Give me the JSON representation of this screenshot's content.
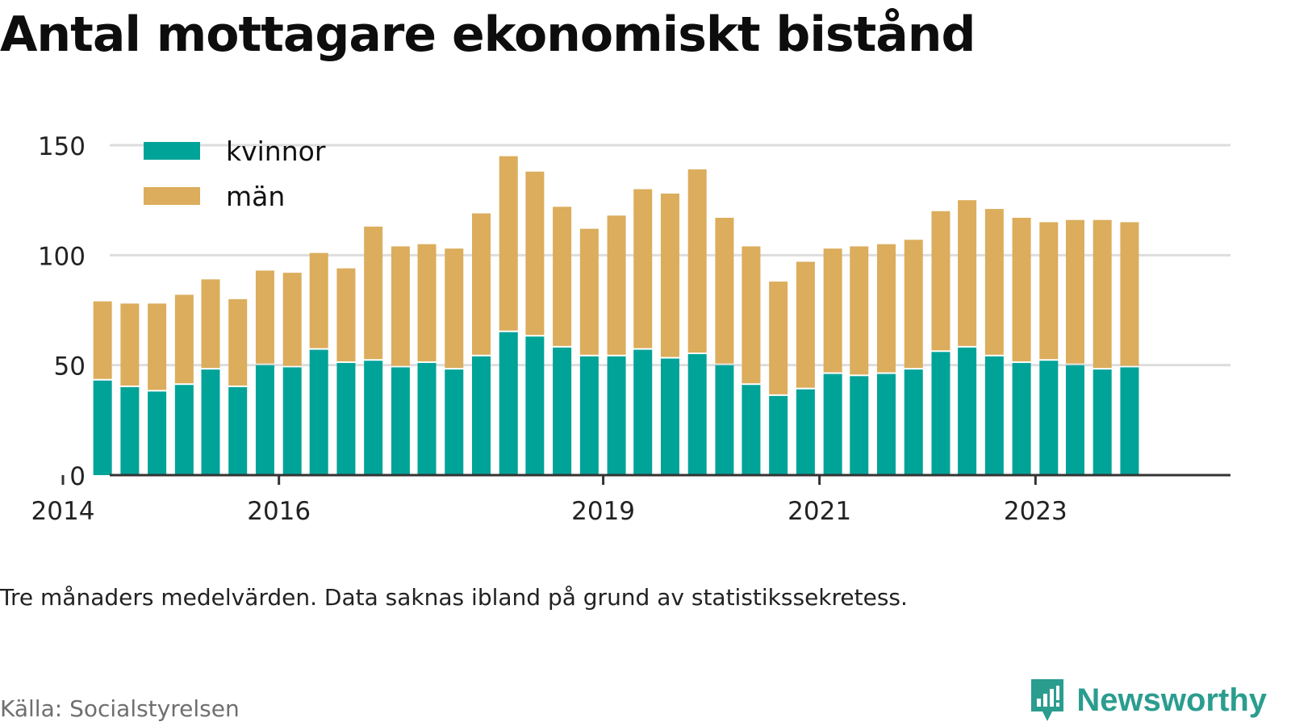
{
  "title": "Antal mottagare ekonomiskt bistånd",
  "note": "Tre månaders medelvärden. Data saknas ibland på grund av statistikssekretess.",
  "source": "Källa: Socialstyrelsen",
  "brand": {
    "name": "Newsworthy",
    "icon": "newsworthy-logo-icon"
  },
  "colors": {
    "kvinnor": "#00A398",
    "man": "#DBAD5C",
    "grid": "#dddddd",
    "axis": "#333333",
    "text": "#222222",
    "brand": "#2a9d8f"
  },
  "chart_data": {
    "type": "bar",
    "stacked": true,
    "legend_position": "top-left",
    "grid": true,
    "ylim": [
      0,
      150
    ],
    "yticks": [
      0,
      50,
      100,
      150
    ],
    "xlim": [
      "2014-01",
      "2024-12"
    ],
    "xticks": [
      {
        "label": "2014",
        "date": "2014-01-01"
      },
      {
        "label": "2016",
        "date": "2016-01-01"
      },
      {
        "label": "2019",
        "date": "2019-01-01"
      },
      {
        "label": "2021",
        "date": "2021-01-01"
      },
      {
        "label": "2023",
        "date": "2023-01-01"
      }
    ],
    "x": [
      "2014-05",
      "2014-08",
      "2014-11",
      "2015-02",
      "2015-05",
      "2015-08",
      "2015-11",
      "2016-02",
      "2016-05",
      "2016-08",
      "2016-11",
      "2017-02",
      "2017-05",
      "2017-08",
      "2017-11",
      "2018-02",
      "2018-05",
      "2018-08",
      "2018-11",
      "2019-02",
      "2019-05",
      "2019-08",
      "2019-11",
      "2020-02",
      "2020-05",
      "2020-08",
      "2020-11",
      "2021-02",
      "2021-05",
      "2021-08",
      "2021-11",
      "2022-02",
      "2022-05",
      "2022-08",
      "2022-11",
      "2023-02",
      "2023-05",
      "2023-08",
      "2023-11"
    ],
    "series": [
      {
        "name": "kvinnor",
        "values": [
          43,
          40,
          38,
          41,
          48,
          40,
          50,
          49,
          57,
          51,
          52,
          49,
          51,
          48,
          54,
          65,
          63,
          58,
          54,
          54,
          57,
          53,
          55,
          50,
          41,
          36,
          39,
          46,
          45,
          46,
          48,
          56,
          58,
          54,
          51,
          52,
          50,
          48,
          49
        ]
      },
      {
        "name": "män",
        "values": [
          36,
          38,
          40,
          41,
          41,
          40,
          43,
          43,
          44,
          43,
          61,
          55,
          54,
          55,
          65,
          80,
          75,
          64,
          58,
          64,
          73,
          75,
          84,
          67,
          63,
          52,
          58,
          57,
          59,
          59,
          59,
          64,
          67,
          67,
          66,
          63,
          66,
          68,
          66
        ]
      }
    ]
  }
}
